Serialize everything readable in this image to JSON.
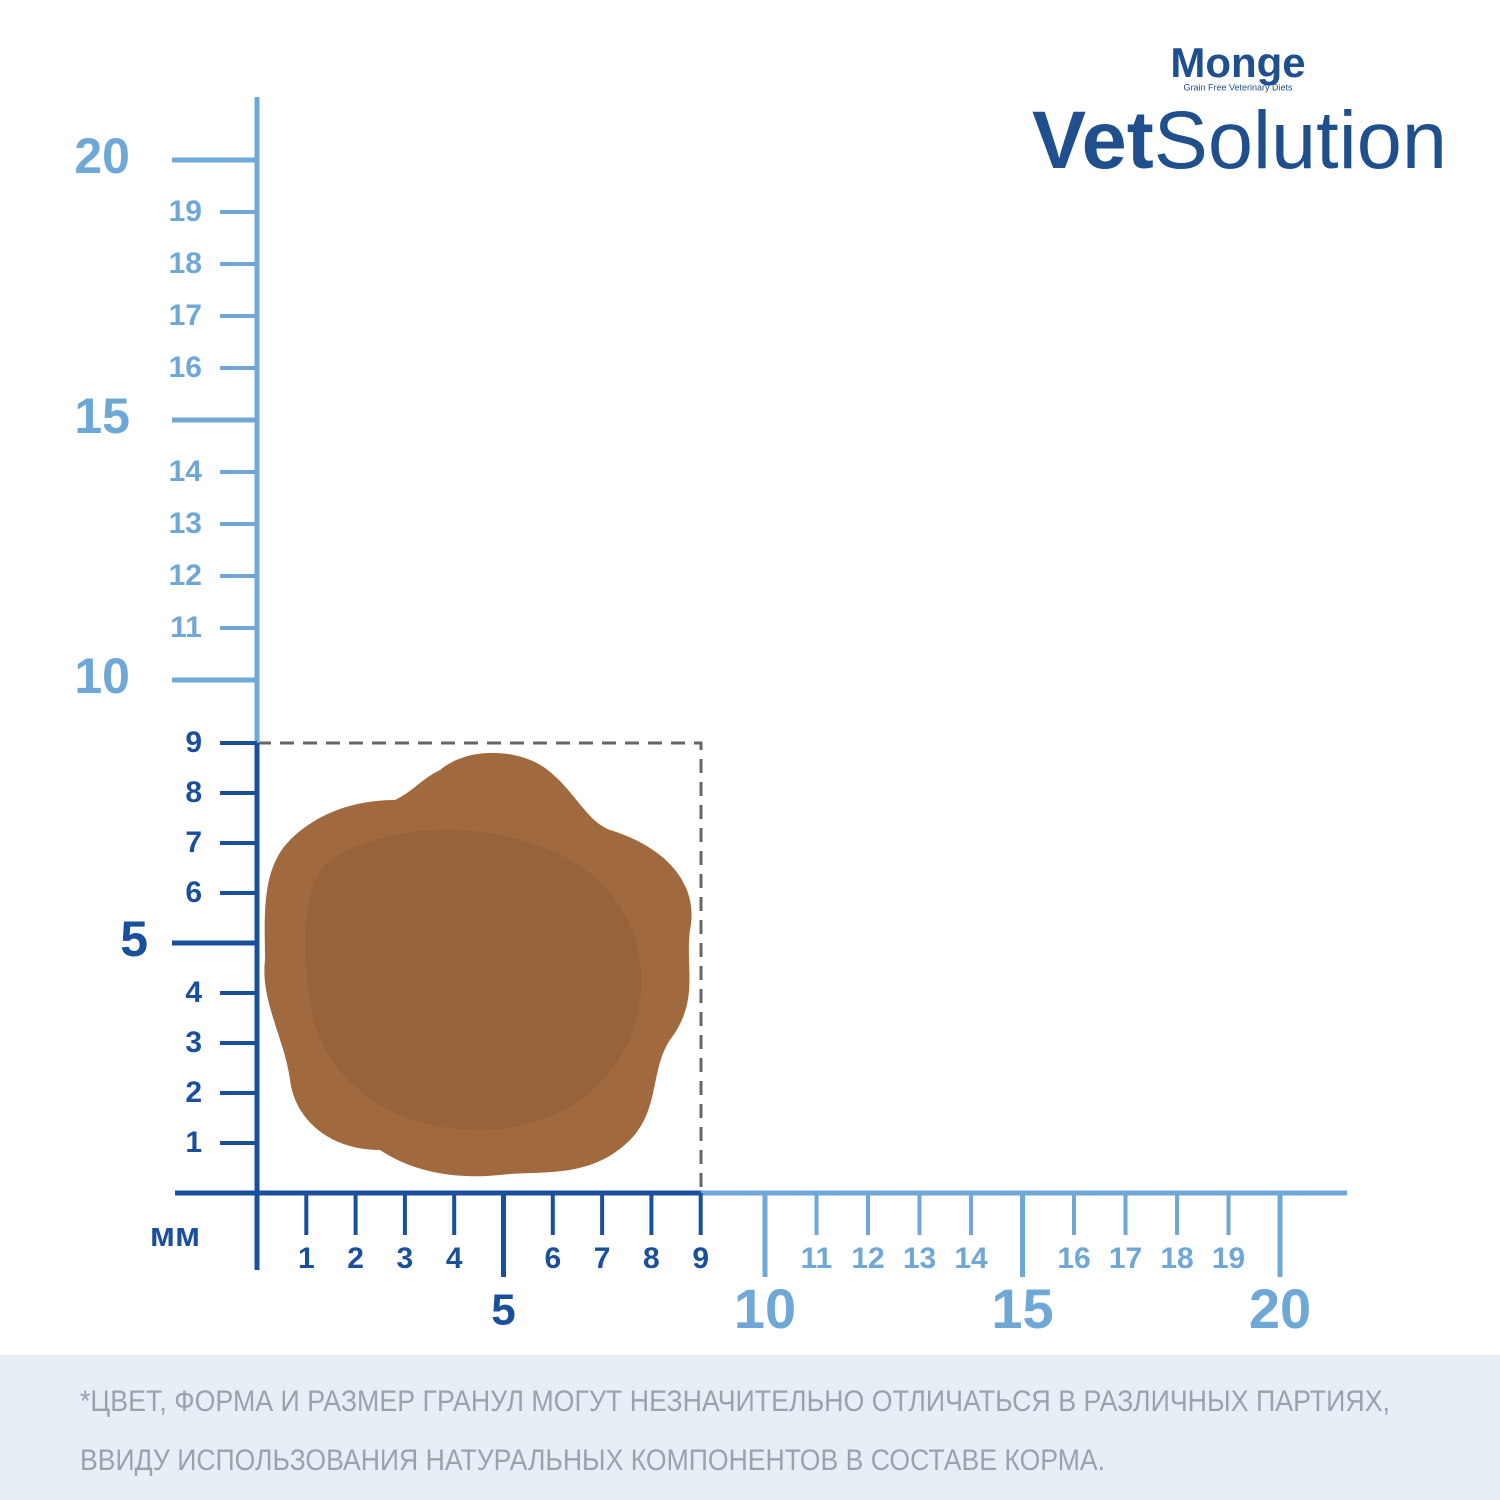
{
  "brand": {
    "name": "Monge",
    "tagline": "Grain Free Veterinary Diets",
    "product_bold": "Vet",
    "product_light": "Solution"
  },
  "ruler": {
    "unit": "мм",
    "y_marks": [
      1,
      2,
      3,
      4,
      5,
      6,
      7,
      8,
      9,
      10,
      11,
      12,
      13,
      14,
      15,
      16,
      17,
      18,
      19,
      20
    ],
    "x_marks": [
      1,
      2,
      3,
      4,
      5,
      6,
      7,
      8,
      9,
      10,
      11,
      12,
      13,
      14,
      15,
      16,
      17,
      18,
      19,
      20
    ]
  },
  "footnote": [
    "*ЦВЕТ, ФОРМА И РАЗМЕР ГРАНУЛ МОГУТ НЕЗНАЧИТЕЛЬНО ОТЛИЧАТЬСЯ В РАЗЛИЧНЫХ ПАРТИЯХ,",
    "ВВИДУ ИСПОЛЬЗОВАНИЯ НАТУРАЛЬНЫХ КОМПОНЕНТОВ В СОСТАВЕ КОРМА."
  ]
}
